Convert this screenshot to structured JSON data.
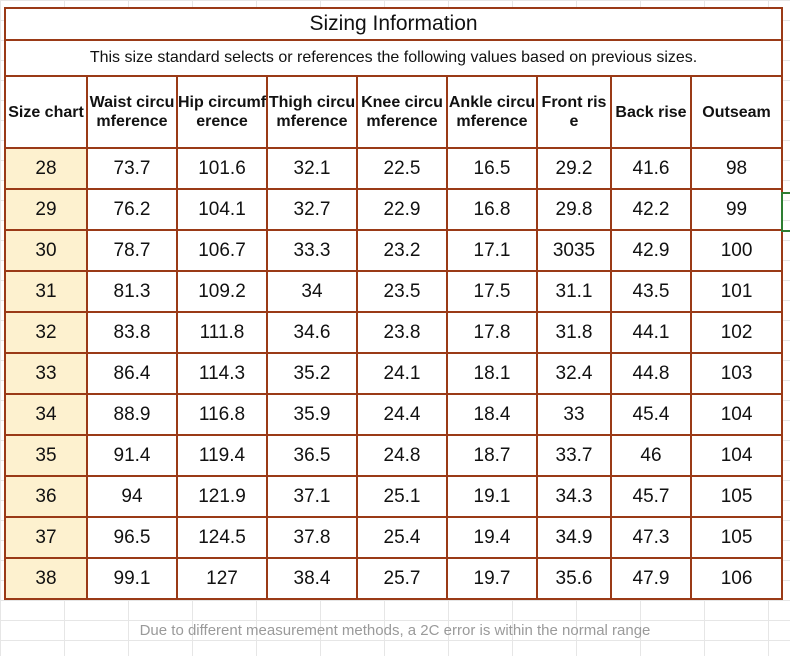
{
  "title": "Sizing Information",
  "subtitle": "This size standard selects or references the following values based on previous sizes.",
  "headers": [
    "Size chart",
    "Waist circumference",
    "Hip circumference",
    "Thigh circumference",
    "Knee circumference",
    "Ankle circumference",
    "Front rise",
    "Back rise",
    "Outseam"
  ],
  "rows": [
    [
      "28",
      "73.7",
      "101.6",
      "32.1",
      "22.5",
      "16.5",
      "29.2",
      "41.6",
      "98"
    ],
    [
      "29",
      "76.2",
      "104.1",
      "32.7",
      "22.9",
      "16.8",
      "29.8",
      "42.2",
      "99"
    ],
    [
      "30",
      "78.7",
      "106.7",
      "33.3",
      "23.2",
      "17.1",
      "3035",
      "42.9",
      "100"
    ],
    [
      "31",
      "81.3",
      "109.2",
      "34",
      "23.5",
      "17.5",
      "31.1",
      "43.5",
      "101"
    ],
    [
      "32",
      "83.8",
      "111.8",
      "34.6",
      "23.8",
      "17.8",
      "31.8",
      "44.1",
      "102"
    ],
    [
      "33",
      "86.4",
      "114.3",
      "35.2",
      "24.1",
      "18.1",
      "32.4",
      "44.8",
      "103"
    ],
    [
      "34",
      "88.9",
      "116.8",
      "35.9",
      "24.4",
      "18.4",
      "33",
      "45.4",
      "104"
    ],
    [
      "35",
      "91.4",
      "119.4",
      "36.5",
      "24.8",
      "18.7",
      "33.7",
      "46",
      "104"
    ],
    [
      "36",
      "94",
      "121.9",
      "37.1",
      "25.1",
      "19.1",
      "34.3",
      "45.7",
      "105"
    ],
    [
      "37",
      "96.5",
      "124.5",
      "37.8",
      "25.4",
      "19.4",
      "34.9",
      "47.3",
      "105"
    ],
    [
      "38",
      "99.1",
      "127",
      "38.4",
      "25.7",
      "19.7",
      "35.6",
      "47.9",
      "106"
    ]
  ],
  "footer": "Due to different measurement methods, a 2C error is within the normal range",
  "colors": {
    "border": "#9a3a17",
    "size_column_fill": "#fdf1cf",
    "footer_text": "#9a9a9a",
    "selection_marker": "#2e7d32"
  }
}
